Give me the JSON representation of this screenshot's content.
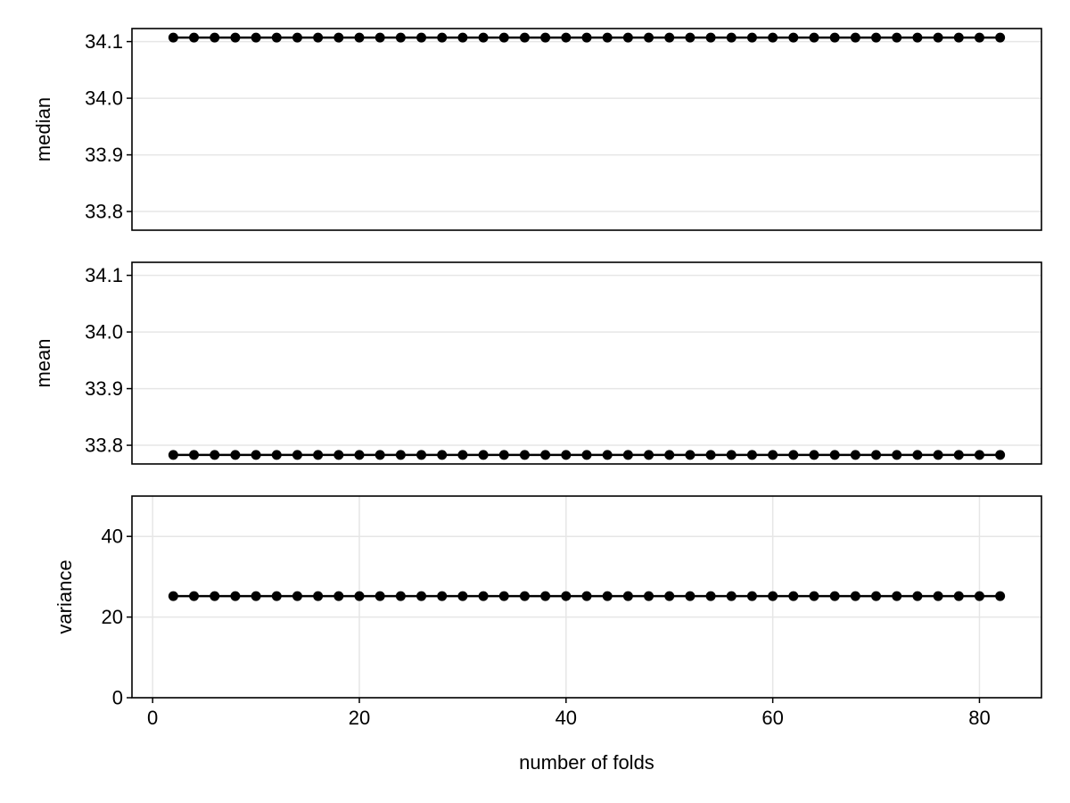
{
  "chart_data": [
    {
      "type": "line",
      "id": "median",
      "title": "",
      "xlabel": "",
      "ylabel": "median",
      "ylim": [
        33.767,
        34.123
      ],
      "yticks": [
        33.8,
        33.9,
        34.0,
        34.1
      ],
      "ytick_labels": [
        "33.8",
        "33.9",
        "34.0",
        "34.1"
      ],
      "xlim": [
        -2,
        86
      ],
      "x_grid": false,
      "y_grid": true,
      "marker": "circle",
      "color": "#000000",
      "x": [
        2,
        4,
        6,
        8,
        10,
        12,
        14,
        16,
        18,
        20,
        22,
        24,
        26,
        28,
        30,
        32,
        34,
        36,
        38,
        40,
        42,
        44,
        46,
        48,
        50,
        52,
        54,
        56,
        58,
        60,
        62,
        64,
        66,
        68,
        70,
        72,
        74,
        76,
        78,
        80,
        82
      ],
      "y": [
        34.107,
        34.107,
        34.107,
        34.107,
        34.107,
        34.107,
        34.107,
        34.107,
        34.107,
        34.107,
        34.107,
        34.107,
        34.107,
        34.107,
        34.107,
        34.107,
        34.107,
        34.107,
        34.107,
        34.107,
        34.107,
        34.107,
        34.107,
        34.107,
        34.107,
        34.107,
        34.107,
        34.107,
        34.107,
        34.107,
        34.107,
        34.107,
        34.107,
        34.107,
        34.107,
        34.107,
        34.107,
        34.107,
        34.107,
        34.107,
        34.107
      ]
    },
    {
      "type": "line",
      "id": "mean",
      "title": "",
      "xlabel": "",
      "ylabel": "mean",
      "ylim": [
        33.767,
        34.123
      ],
      "yticks": [
        33.8,
        33.9,
        34.0,
        34.1
      ],
      "ytick_labels": [
        "33.8",
        "33.9",
        "34.0",
        "34.1"
      ],
      "xlim": [
        -2,
        86
      ],
      "x_grid": false,
      "y_grid": true,
      "marker": "circle",
      "color": "#000000",
      "x": [
        2,
        4,
        6,
        8,
        10,
        12,
        14,
        16,
        18,
        20,
        22,
        24,
        26,
        28,
        30,
        32,
        34,
        36,
        38,
        40,
        42,
        44,
        46,
        48,
        50,
        52,
        54,
        56,
        58,
        60,
        62,
        64,
        66,
        68,
        70,
        72,
        74,
        76,
        78,
        80,
        82
      ],
      "y": [
        33.783,
        33.783,
        33.783,
        33.783,
        33.783,
        33.783,
        33.783,
        33.783,
        33.783,
        33.783,
        33.783,
        33.783,
        33.783,
        33.783,
        33.783,
        33.783,
        33.783,
        33.783,
        33.783,
        33.783,
        33.783,
        33.783,
        33.783,
        33.783,
        33.783,
        33.783,
        33.783,
        33.783,
        33.783,
        33.783,
        33.783,
        33.783,
        33.783,
        33.783,
        33.783,
        33.783,
        33.783,
        33.783,
        33.783,
        33.783,
        33.783
      ]
    },
    {
      "type": "line",
      "id": "variance",
      "title": "",
      "xlabel": "number of folds",
      "ylabel": "variance",
      "ylim": [
        0,
        50
      ],
      "yticks": [
        0,
        20,
        40
      ],
      "ytick_labels": [
        "0",
        "20",
        "40"
      ],
      "xlim": [
        -2,
        86
      ],
      "xticks": [
        0,
        20,
        40,
        60,
        80
      ],
      "xtick_labels": [
        "0",
        "20",
        "40",
        "60",
        "80"
      ],
      "x_grid": true,
      "y_grid": true,
      "marker": "circle",
      "color": "#000000",
      "x": [
        2,
        4,
        6,
        8,
        10,
        12,
        14,
        16,
        18,
        20,
        22,
        24,
        26,
        28,
        30,
        32,
        34,
        36,
        38,
        40,
        42,
        44,
        46,
        48,
        50,
        52,
        54,
        56,
        58,
        60,
        62,
        64,
        66,
        68,
        70,
        72,
        74,
        76,
        78,
        80,
        82
      ],
      "y": [
        25.2,
        25.2,
        25.2,
        25.2,
        25.2,
        25.2,
        25.2,
        25.2,
        25.2,
        25.2,
        25.2,
        25.2,
        25.2,
        25.2,
        25.2,
        25.2,
        25.2,
        25.2,
        25.2,
        25.2,
        25.2,
        25.2,
        25.2,
        25.2,
        25.2,
        25.2,
        25.2,
        25.2,
        25.2,
        25.2,
        25.2,
        25.2,
        25.2,
        25.2,
        25.2,
        25.2,
        25.2,
        25.2,
        25.2,
        25.2,
        25.2
      ]
    }
  ]
}
